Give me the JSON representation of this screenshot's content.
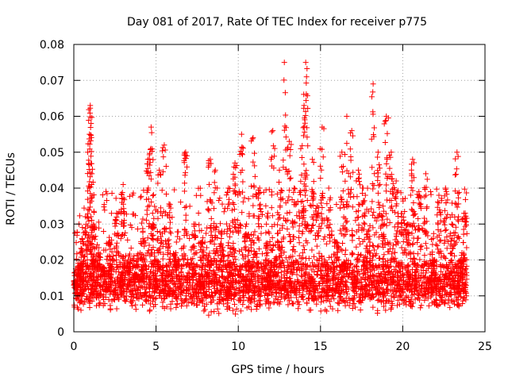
{
  "chart_data": {
    "type": "scatter",
    "title": "Day 081 of 2017, Rate Of TEC Index for receiver p775",
    "xlabel": "GPS time / hours",
    "ylabel": "ROTI / TECUs",
    "xlim": [
      0,
      25
    ],
    "ylim": [
      0,
      0.08
    ],
    "x_ticks": [
      0,
      5,
      10,
      15,
      20,
      25
    ],
    "y_ticks": [
      0,
      0.01,
      0.02,
      0.03,
      0.04,
      0.05,
      0.06,
      0.07,
      0.08
    ],
    "x_tick_labels": [
      "0",
      "5",
      "10",
      "15",
      "20",
      "25"
    ],
    "y_tick_labels": [
      "0",
      "0.01",
      "0.02",
      "0.03",
      "0.04",
      "0.05",
      "0.06",
      "0.07",
      "0.08"
    ],
    "grid": true,
    "marker": "+",
    "color": "#ff0000",
    "series": [
      {
        "name": "ROTI",
        "x": [
          0.1,
          0.3,
          0.5,
          0.8,
          0.95,
          1.0,
          1.05,
          1.1,
          1.2,
          1.5,
          1.8,
          2.2,
          2.6,
          3.0,
          3.3,
          3.8,
          4.2,
          4.5,
          4.7,
          4.8,
          5.2,
          5.5,
          5.8,
          6.2,
          6.8,
          7.3,
          7.8,
          8.3,
          8.6,
          9.0,
          9.4,
          9.8,
          10.2,
          10.5,
          10.9,
          11.3,
          11.8,
          12.1,
          12.5,
          12.8,
          13.1,
          13.4,
          13.8,
          14.0,
          14.1,
          14.15,
          14.5,
          14.8,
          15.1,
          15.5,
          15.9,
          16.3,
          16.6,
          16.9,
          17.3,
          17.6,
          17.9,
          18.2,
          18.5,
          18.8,
          19.0,
          19.3,
          19.6,
          20.0,
          20.3,
          20.6,
          21.0,
          21.4,
          21.8,
          22.2,
          22.6,
          23.0,
          23.3,
          23.6,
          23.8
        ],
        "y": [
          0.012,
          0.018,
          0.026,
          0.032,
          0.055,
          0.063,
          0.058,
          0.044,
          0.03,
          0.022,
          0.018,
          0.025,
          0.033,
          0.041,
          0.02,
          0.016,
          0.028,
          0.048,
          0.057,
          0.03,
          0.045,
          0.052,
          0.035,
          0.022,
          0.05,
          0.03,
          0.025,
          0.048,
          0.045,
          0.028,
          0.04,
          0.047,
          0.055,
          0.03,
          0.054,
          0.04,
          0.033,
          0.056,
          0.045,
          0.075,
          0.053,
          0.04,
          0.051,
          0.063,
          0.075,
          0.071,
          0.048,
          0.035,
          0.057,
          0.04,
          0.025,
          0.05,
          0.06,
          0.056,
          0.045,
          0.04,
          0.028,
          0.069,
          0.05,
          0.035,
          0.06,
          0.05,
          0.042,
          0.037,
          0.03,
          0.048,
          0.038,
          0.044,
          0.02,
          0.038,
          0.04,
          0.03,
          0.05,
          0.022,
          0.033
        ]
      }
    ],
    "density_note_band": [
      0.005,
      0.02
    ]
  }
}
